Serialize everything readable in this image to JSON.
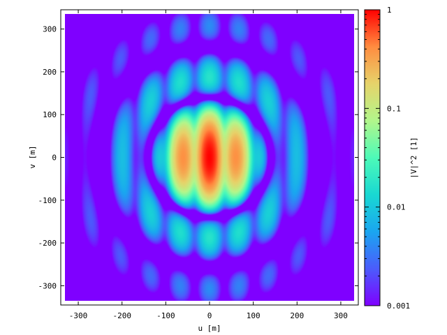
{
  "chart_data": {
    "type": "heatmap",
    "title": "",
    "xlabel": "u [m]",
    "ylabel": "v [m]",
    "colorbar_label": "|V|^2 [1]",
    "xlim": [
      -340,
      340
    ],
    "ylim": [
      -345,
      345
    ],
    "x_ticks": [
      -300,
      -200,
      -100,
      0,
      100,
      200,
      300
    ],
    "x_tick_labels": [
      "-300",
      "-200",
      "-100",
      "0",
      "100",
      "200",
      "300"
    ],
    "y_ticks": [
      -300,
      -200,
      -100,
      0,
      100,
      200,
      300
    ],
    "y_tick_labels": [
      "-300",
      "-200",
      "-100",
      "0",
      "100",
      "200",
      "300"
    ],
    "data_extent": {
      "u": [
        -330,
        330
      ],
      "v": [
        -335,
        335
      ]
    },
    "colorbar": {
      "scale": "log",
      "range": [
        0.001,
        1
      ],
      "tick_values": [
        0.001,
        0.01,
        0.1,
        1
      ],
      "tick_labels": [
        "0.001",
        "0.01",
        "0.1",
        "1"
      ],
      "colormap": "rainbow",
      "colors": [
        "#7f00ff",
        "#2adddd",
        "#d4dc7f",
        "#ff0000"
      ]
    },
    "model": {
      "description_values": {
        "lobe_period_u_m": 68,
        "ring_radii_m": [
          0,
          140,
          250
        ],
        "peak_value": 1,
        "floor_value": 0.001
      }
    },
    "grid": false,
    "legend": "colorbar-right"
  }
}
